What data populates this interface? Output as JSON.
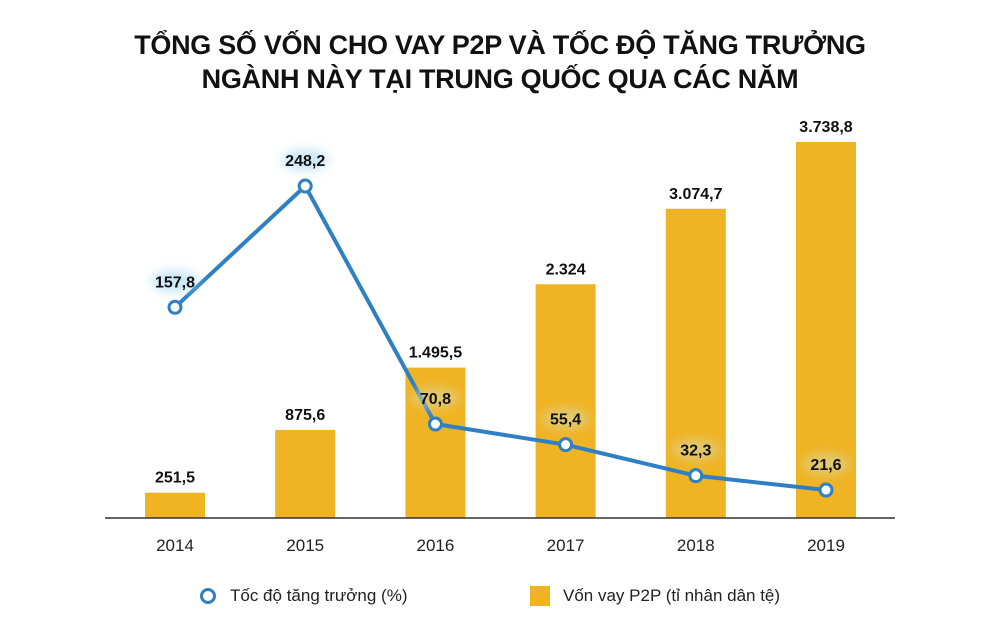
{
  "chart_data": {
    "type": "bar+line",
    "title_line1": "TỔNG SỐ VỐN CHO VAY P2P VÀ TỐC ĐỘ TĂNG TRƯỞNG",
    "title_line2": "NGÀNH NÀY TẠI TRUNG QUỐC QUA CÁC NĂM",
    "categories": [
      "2014",
      "2015",
      "2016",
      "2017",
      "2018",
      "2019"
    ],
    "series": [
      {
        "name": "Vốn vay P2P (tỉ nhân dân tệ)",
        "type": "bar",
        "color": "#f0b323",
        "values": [
          251.5,
          875.6,
          1495.5,
          2324,
          3074.7,
          3738.8
        ],
        "labels": [
          "251,5",
          "875,6",
          "1.495,5",
          "2.324",
          "3.074,7",
          "3.738,8"
        ]
      },
      {
        "name": "Tốc độ tăng trưởng (%)",
        "type": "line",
        "color": "#2f80c3",
        "values": [
          157.8,
          248.2,
          70.8,
          55.4,
          32.3,
          21.6
        ],
        "labels": [
          "157,8",
          "248,2",
          "70,8",
          "55,4",
          "32,3",
          "21,6"
        ]
      }
    ],
    "legend_position": "bottom",
    "grid": false
  }
}
